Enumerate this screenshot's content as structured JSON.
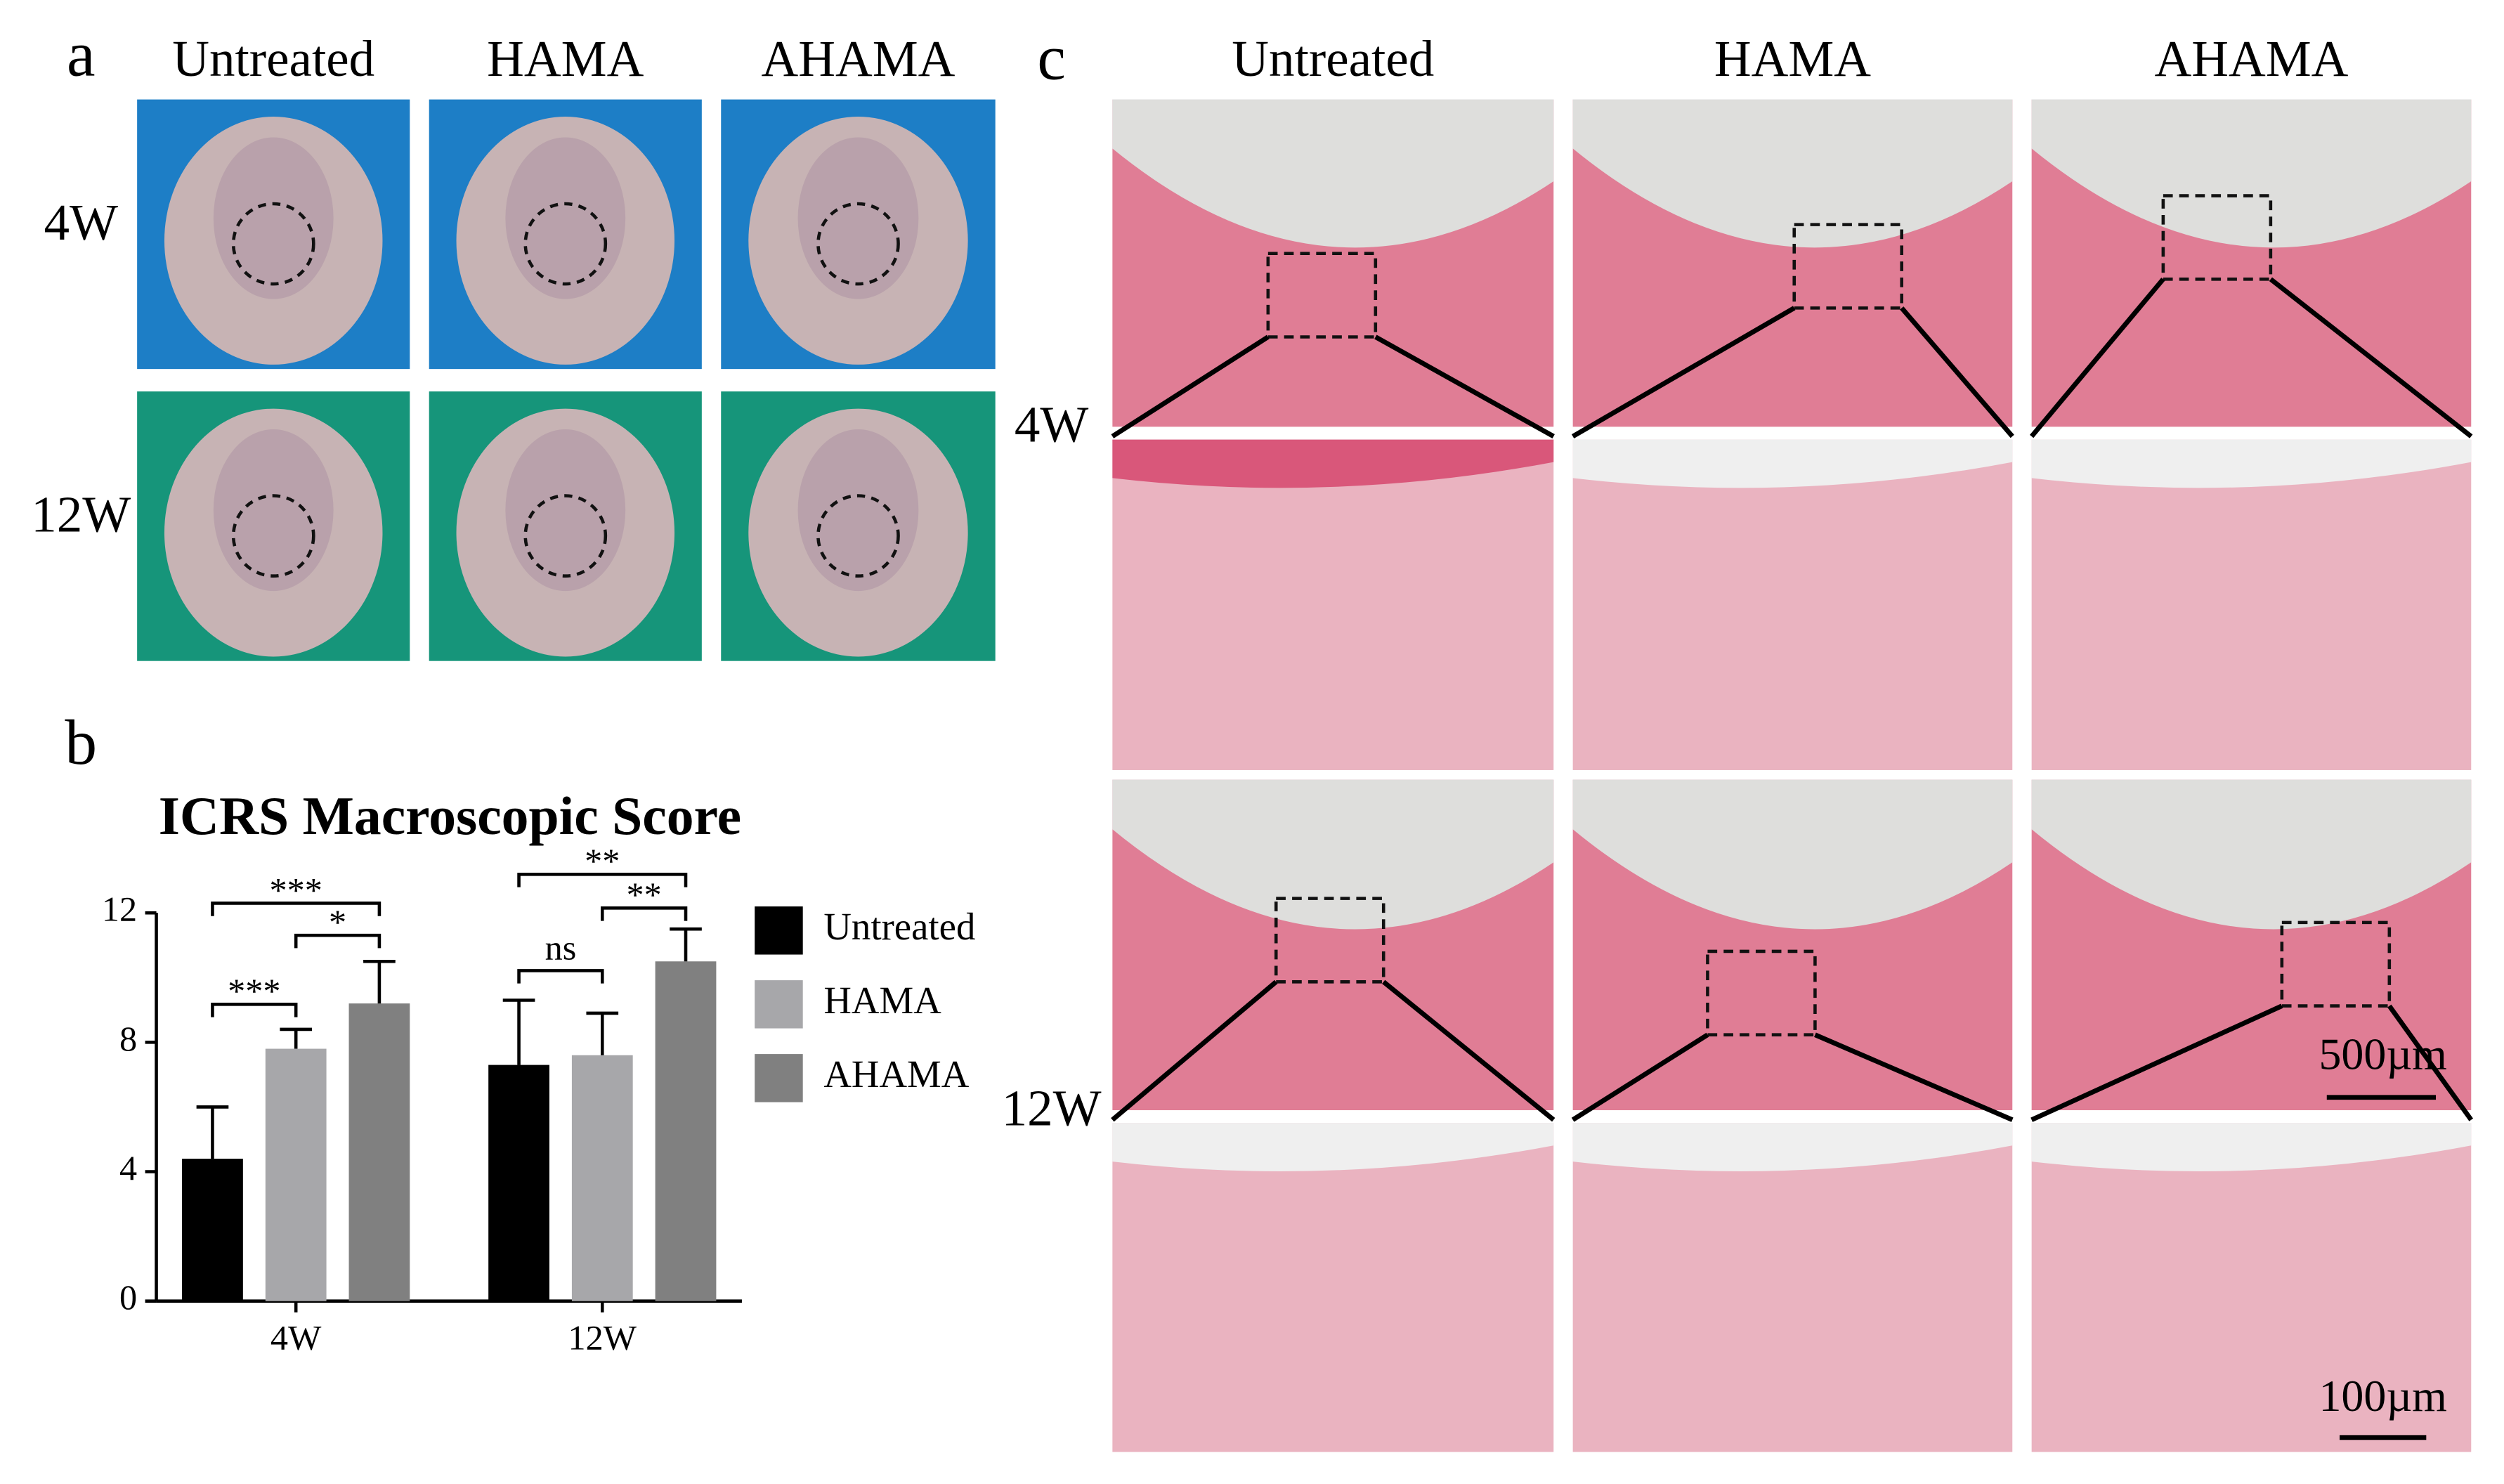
{
  "panel_a": {
    "label": "a",
    "columns": [
      "Untreated",
      "HAMA",
      "AHAMA"
    ],
    "rows": [
      "4W",
      "12W"
    ]
  },
  "chart_data": {
    "type": "bar",
    "panel_label": "b",
    "title": "ICRS Macroscopic Score",
    "categories": [
      "4W",
      "12W"
    ],
    "series": [
      {
        "name": "Untreated",
        "color": "#000000",
        "values": [
          4.4,
          7.3
        ],
        "errors": [
          1.6,
          2.0
        ]
      },
      {
        "name": "HAMA",
        "color": "#a7a7aa",
        "values": [
          7.8,
          7.6
        ],
        "errors": [
          0.6,
          1.3
        ]
      },
      {
        "name": "AHAMA",
        "color": "#808080",
        "values": [
          9.2,
          10.5
        ],
        "errors": [
          1.3,
          1.0
        ]
      }
    ],
    "ylim": [
      0,
      12
    ],
    "yticks": [
      0,
      4,
      8,
      12
    ],
    "annotations": [
      "***",
      "*",
      "***",
      "**",
      "**",
      "ns"
    ]
  },
  "panel_c": {
    "label": "c",
    "columns": [
      "Untreated",
      "HAMA",
      "AHAMA"
    ],
    "rows": [
      "4W",
      "12W"
    ],
    "scale_bars": [
      "500µm",
      "100µm"
    ]
  }
}
